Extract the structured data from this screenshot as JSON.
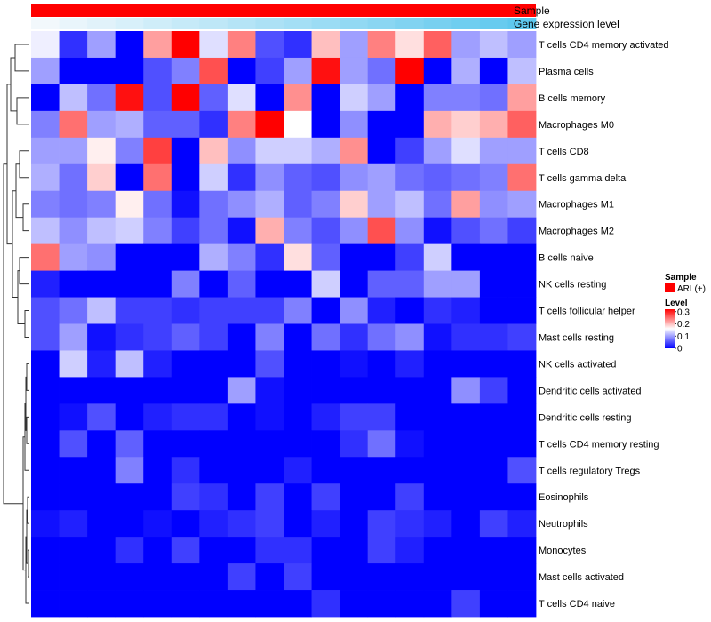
{
  "chart_data": {
    "type": "heatmap",
    "annotations": {
      "sample_label": "Sample",
      "gene_label": "Gene expression level"
    },
    "legend": {
      "sample_title": "Sample",
      "sample_entry": "ARL(+)",
      "sample_color": "#ff0000",
      "level_title": "Level",
      "level_ticks": [
        "0.3",
        "0.2",
        "0.1",
        "0"
      ],
      "level_tick_values": [
        0.3,
        0.2,
        0.1,
        0
      ],
      "level_range": [
        0,
        0.32
      ],
      "colors": {
        "low": "#0000ff",
        "mid": "#ffffff",
        "high": "#ff0000",
        "mid_value": 0.16
      },
      "gene_gradient": {
        "start": "#f2f8fc",
        "end": "#5ec8ee"
      }
    },
    "n_columns": 18,
    "rows": [
      "T cells CD4 memory activated",
      "Plasma cells",
      "B cells memory",
      "Macrophages M0",
      "T cells CD8",
      "T cells gamma delta",
      "Macrophages M1",
      "Macrophages M2",
      "B cells naive",
      "NK cells resting",
      "T cells follicular helper",
      "Mast cells resting",
      "NK cells activated",
      "Dendritic cells activated",
      "Dendritic cells resting",
      "T cells CD4 memory resting",
      "T cells regulatory  Tregs",
      "Eosinophils",
      "Neutrophils",
      "Monocytes",
      "Mast cells activated",
      "T cells CD4 naive"
    ],
    "values": [
      [
        0.15,
        0.03,
        0.1,
        0.0,
        0.22,
        0.32,
        0.14,
        0.24,
        0.05,
        0.03,
        0.2,
        0.1,
        0.24,
        0.18,
        0.26,
        0.1,
        0.12,
        0.1
      ],
      [
        0.1,
        0.0,
        0.0,
        0.0,
        0.05,
        0.08,
        0.27,
        0.0,
        0.04,
        0.1,
        0.31,
        0.1,
        0.07,
        0.32,
        0.0,
        0.11,
        0.0,
        0.12
      ],
      [
        0.0,
        0.12,
        0.07,
        0.31,
        0.05,
        0.32,
        0.06,
        0.14,
        0.0,
        0.23,
        0.0,
        0.13,
        0.1,
        0.0,
        0.08,
        0.08,
        0.07,
        0.22
      ],
      [
        0.08,
        0.25,
        0.1,
        0.11,
        0.06,
        0.06,
        0.03,
        0.24,
        0.32,
        0.16,
        0.0,
        0.09,
        0.0,
        0.0,
        0.21,
        0.19,
        0.21,
        0.26
      ],
      [
        0.1,
        0.1,
        0.17,
        0.08,
        0.28,
        0.0,
        0.2,
        0.09,
        0.13,
        0.13,
        0.11,
        0.23,
        0.0,
        0.04,
        0.1,
        0.14,
        0.1,
        0.1
      ],
      [
        0.11,
        0.07,
        0.19,
        0.0,
        0.25,
        0.0,
        0.13,
        0.03,
        0.09,
        0.06,
        0.05,
        0.09,
        0.1,
        0.07,
        0.06,
        0.07,
        0.08,
        0.25
      ],
      [
        0.08,
        0.07,
        0.08,
        0.17,
        0.07,
        0.01,
        0.07,
        0.09,
        0.11,
        0.06,
        0.08,
        0.19,
        0.1,
        0.12,
        0.07,
        0.22,
        0.09,
        0.1
      ],
      [
        0.12,
        0.09,
        0.12,
        0.13,
        0.08,
        0.04,
        0.07,
        0.01,
        0.21,
        0.08,
        0.05,
        0.09,
        0.27,
        0.09,
        0.01,
        0.05,
        0.07,
        0.04
      ],
      [
        0.25,
        0.1,
        0.09,
        0.0,
        0.0,
        0.0,
        0.11,
        0.08,
        0.03,
        0.18,
        0.06,
        0.0,
        0.0,
        0.04,
        0.13,
        0.0,
        0.0,
        0.0
      ],
      [
        0.02,
        0.0,
        0.0,
        0.0,
        0.0,
        0.08,
        0.0,
        0.06,
        0.0,
        0.0,
        0.13,
        0.0,
        0.06,
        0.06,
        0.1,
        0.1,
        0.0,
        0.0
      ],
      [
        0.05,
        0.07,
        0.12,
        0.04,
        0.04,
        0.03,
        0.04,
        0.04,
        0.04,
        0.08,
        0.0,
        0.09,
        0.02,
        0.0,
        0.03,
        0.02,
        0.0,
        0.0
      ],
      [
        0.05,
        0.1,
        0.01,
        0.03,
        0.04,
        0.06,
        0.04,
        0.0,
        0.08,
        0.0,
        0.07,
        0.03,
        0.07,
        0.09,
        0.01,
        0.03,
        0.03,
        0.04
      ],
      [
        0.0,
        0.13,
        0.02,
        0.12,
        0.02,
        0.0,
        0.0,
        0.0,
        0.05,
        0.0,
        0.0,
        0.01,
        0.0,
        0.02,
        0.0,
        0.0,
        0.0,
        0.0
      ],
      [
        0.0,
        0.0,
        0.0,
        0.0,
        0.0,
        0.0,
        0.0,
        0.1,
        0.01,
        0.0,
        0.0,
        0.0,
        0.0,
        0.0,
        0.0,
        0.09,
        0.04,
        0.0
      ],
      [
        0.0,
        0.01,
        0.05,
        0.0,
        0.02,
        0.03,
        0.03,
        0.0,
        0.01,
        0.0,
        0.02,
        0.04,
        0.04,
        0.0,
        0.0,
        0.0,
        0.0,
        0.0
      ],
      [
        0.0,
        0.05,
        0.0,
        0.06,
        0.0,
        0.0,
        0.0,
        0.0,
        0.0,
        0.0,
        0.0,
        0.03,
        0.07,
        0.01,
        0.0,
        0.0,
        0.0,
        0.0
      ],
      [
        0.0,
        0.0,
        0.0,
        0.08,
        0.0,
        0.03,
        0.0,
        0.0,
        0.0,
        0.02,
        0.0,
        0.0,
        0.0,
        0.0,
        0.0,
        0.0,
        0.0,
        0.05
      ],
      [
        0.0,
        0.0,
        0.0,
        0.0,
        0.0,
        0.04,
        0.03,
        0.0,
        0.04,
        0.0,
        0.04,
        0.0,
        0.0,
        0.04,
        0.0,
        0.0,
        0.0,
        0.0
      ],
      [
        0.01,
        0.02,
        0.0,
        0.0,
        0.01,
        0.0,
        0.02,
        0.03,
        0.04,
        0.0,
        0.02,
        0.0,
        0.04,
        0.03,
        0.02,
        0.0,
        0.04,
        0.02
      ],
      [
        0.0,
        0.0,
        0.0,
        0.03,
        0.0,
        0.04,
        0.0,
        0.0,
        0.03,
        0.03,
        0.0,
        0.0,
        0.04,
        0.02,
        0.0,
        0.0,
        0.0,
        0.0
      ],
      [
        0.0,
        0.0,
        0.0,
        0.0,
        0.0,
        0.0,
        0.0,
        0.04,
        0.0,
        0.04,
        0.0,
        0.0,
        0.0,
        0.0,
        0.0,
        0.0,
        0.0,
        0.0
      ],
      [
        0.0,
        0.0,
        0.0,
        0.0,
        0.0,
        0.0,
        0.0,
        0.0,
        0.0,
        0.0,
        0.03,
        0.0,
        0.0,
        0.0,
        0.0,
        0.04,
        0.0,
        0.0
      ]
    ]
  }
}
